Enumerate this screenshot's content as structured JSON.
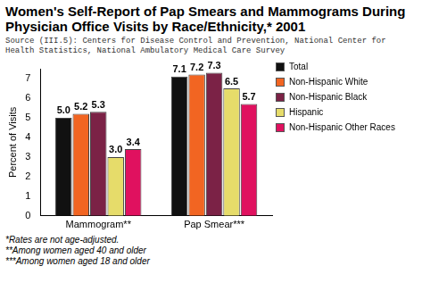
{
  "chart_data": {
    "type": "bar",
    "title": "Women's Self-Report of Pap Smears and Mammograms During Physician Office Visits by Race/Ethnicity,* 2001",
    "subtitle": "Source (III.5): Centers for Disease Control and Prevention, National Center for Health Statistics, National Ambulatory Medical Care Survey",
    "y_label": "Percent of Visits",
    "categories": [
      "Mammogram**",
      "Pap Smear***"
    ],
    "series": [
      {
        "name": "Total",
        "color": "#111111",
        "values": [
          5.0,
          7.1
        ],
        "value_labels": [
          "5.0",
          "7.1"
        ]
      },
      {
        "name": "Non-Hispanic White",
        "color": "#f26522",
        "values": [
          5.2,
          7.2
        ],
        "value_labels": [
          "5.2",
          "7.2"
        ]
      },
      {
        "name": "Non-Hispanic Black",
        "color": "#7b2246",
        "values": [
          5.3,
          7.3
        ],
        "value_labels": [
          "5.3",
          "7.3"
        ]
      },
      {
        "name": "Hispanic",
        "color": "#e6dc6a",
        "values": [
          3.0,
          6.5
        ],
        "value_labels": [
          "3.0",
          "6.5"
        ]
      },
      {
        "name": "Non-Hispanic Other Races",
        "color": "#e0115f",
        "values": [
          3.4,
          5.7
        ],
        "value_labels": [
          "3.4",
          "5.7"
        ]
      }
    ],
    "ylim": [
      0,
      7.5
    ],
    "yticks": [
      0,
      1,
      2,
      3,
      4,
      5,
      6,
      7
    ],
    "grid": false,
    "legend": "right",
    "data_labels": true,
    "notes": [
      "*Rates are not age-adjusted.",
      "**Among women aged 40 and older",
      "***Among women aged 18 and older"
    ]
  }
}
